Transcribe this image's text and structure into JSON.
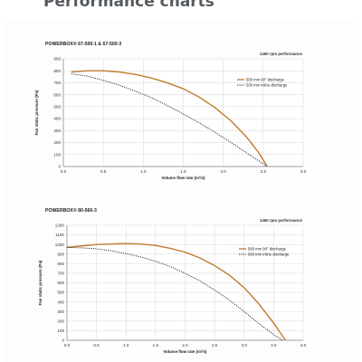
{
  "page": {
    "title": "Performance charts"
  },
  "colors": {
    "series_solid": "#c07a2e",
    "series_dotted": "#222222",
    "grid": "#d7d7d7",
    "axis": "#888888"
  },
  "chart_data": [
    {
      "type": "line",
      "title": "POWERBOX® 67-500-1 & 67-500-3",
      "subtitle": "1460 rpm performance",
      "xlabel": "Volume flow rate (m³/s)",
      "ylabel": "Fan static pressure (Pa)",
      "xlim": [
        0,
        3.0
      ],
      "ylim": [
        0,
        900
      ],
      "x_ticks": [
        "0.0",
        "0.5",
        "1.0",
        "1.5",
        "2.0",
        "2.5",
        "3.0"
      ],
      "y_ticks": [
        "0",
        "100",
        "200",
        "300",
        "400",
        "500",
        "600",
        "700",
        "800",
        "900"
      ],
      "grid": true,
      "legend_position": "right",
      "series": [
        {
          "name": "500 mm 90° discharge",
          "style": "solid",
          "x": [
            0.1,
            0.3,
            0.5,
            0.7,
            0.9,
            1.1,
            1.3,
            1.5,
            1.7,
            1.9,
            2.1,
            2.3,
            2.45,
            2.55
          ],
          "y": [
            790,
            800,
            800,
            790,
            770,
            740,
            700,
            650,
            580,
            490,
            380,
            240,
            110,
            0
          ]
        },
        {
          "name": "500 mm inline discharge",
          "style": "dotted",
          "x": [
            0.1,
            0.3,
            0.5,
            0.7,
            0.9,
            1.1,
            1.3,
            1.5,
            1.7,
            1.9,
            2.1,
            2.3,
            2.45,
            2.55
          ],
          "y": [
            775,
            755,
            720,
            680,
            630,
            575,
            510,
            440,
            365,
            285,
            200,
            110,
            45,
            0
          ]
        }
      ]
    },
    {
      "type": "line",
      "title": "POWERBOX® 80-560-3",
      "subtitle": "1460 rpm performance",
      "xlabel": "Volume flow rate (m³/s)",
      "ylabel": "Fan static pressure (Pa)",
      "xlim": [
        0,
        4.0
      ],
      "ylim": [
        0,
        1200
      ],
      "x_ticks": [
        "0.0",
        "0.5",
        "1.0",
        "1.5",
        "2.0",
        "2.5",
        "3.0",
        "3.5",
        "4.0"
      ],
      "y_ticks": [
        "0",
        "100",
        "200",
        "300",
        "400",
        "500",
        "600",
        "700",
        "800",
        "900",
        "1000",
        "1100",
        "1200"
      ],
      "grid": true,
      "legend_position": "right",
      "series": [
        {
          "name": "560 mm 90° discharge",
          "style": "solid",
          "x": [
            0.0,
            0.25,
            0.5,
            0.75,
            1.0,
            1.25,
            1.5,
            1.75,
            2.0,
            2.25,
            2.5,
            2.75,
            3.0,
            3.25,
            3.5,
            3.7
          ],
          "y": [
            970,
            985,
            1000,
            1005,
            1010,
            1005,
            990,
            960,
            920,
            860,
            780,
            680,
            550,
            380,
            180,
            0
          ]
        },
        {
          "name": "560 mm inline discharge",
          "style": "dotted",
          "x": [
            0.0,
            0.25,
            0.5,
            0.75,
            1.0,
            1.25,
            1.5,
            1.75,
            2.0,
            2.25,
            2.5,
            2.75,
            3.0,
            3.25,
            3.5,
            3.65
          ],
          "y": [
            970,
            965,
            955,
            935,
            905,
            870,
            825,
            770,
            700,
            620,
            525,
            420,
            300,
            175,
            60,
            0
          ]
        }
      ]
    }
  ]
}
